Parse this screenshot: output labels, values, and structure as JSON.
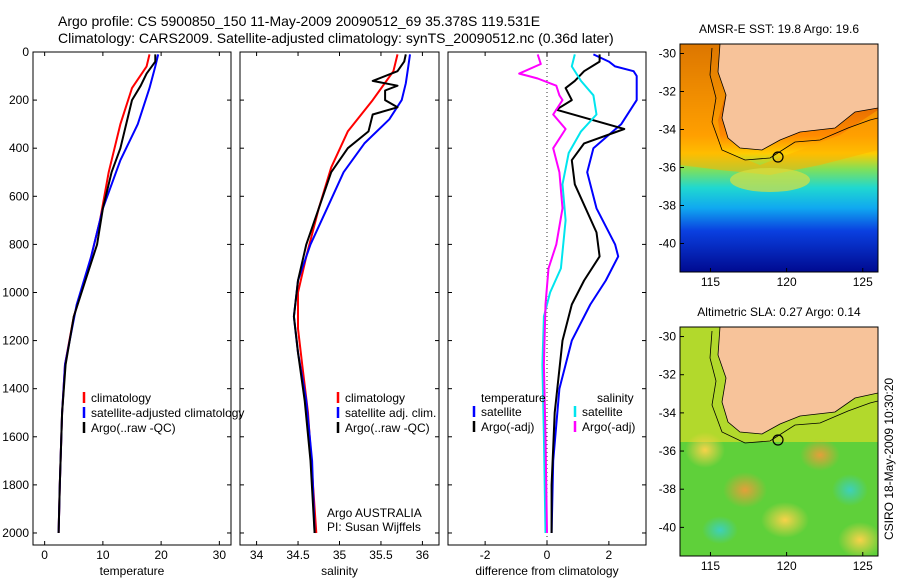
{
  "header": {
    "line1": "Argo profile: CS 5900850_150 11-May-2009 20090512_69 35.378S 119.531E",
    "line2": "Climatology: CARS2009. Satellite-adjusted climatology: synTS_20090512.nc (0.36d later)"
  },
  "credit": "CSIRO 18-May-2009 10:30:20",
  "colors": {
    "red": "#ff0000",
    "blue": "#0000ff",
    "black": "#000000",
    "cyan": "#00e5ee",
    "magenta": "#ff00ff",
    "land": "#f7c39a"
  },
  "chart_data": [
    {
      "type": "line",
      "xlabel": "temperature",
      "xlim": [
        -2,
        32
      ],
      "ylim": [
        2050,
        0
      ],
      "xticks": [
        0,
        10,
        20,
        30
      ],
      "yticks": [
        0,
        200,
        400,
        600,
        800,
        1000,
        1200,
        1400,
        1600,
        1800,
        2000
      ],
      "legend": [
        "climatology",
        "satellite-adjusted climatology",
        "Argo(..raw -QC)"
      ],
      "series": [
        {
          "name": "climatology",
          "color": "red",
          "points": [
            [
              18,
              10
            ],
            [
              17.5,
              60
            ],
            [
              15,
              150
            ],
            [
              13,
              300
            ],
            [
              11,
              500
            ],
            [
              9.5,
              700
            ],
            [
              7.5,
              900
            ],
            [
              5,
              1100
            ],
            [
              3.5,
              1300
            ],
            [
              3,
              1500
            ],
            [
              2.6,
              1800
            ],
            [
              2.4,
              2000
            ]
          ]
        },
        {
          "name": "satellite-adjusted climatology",
          "color": "blue",
          "points": [
            [
              19.5,
              10
            ],
            [
              19,
              60
            ],
            [
              18,
              150
            ],
            [
              16,
              300
            ],
            [
              13,
              450
            ],
            [
              10,
              650
            ],
            [
              8,
              850
            ],
            [
              5.5,
              1050
            ],
            [
              3.5,
              1300
            ],
            [
              3,
              1500
            ],
            [
              2.6,
              1800
            ],
            [
              2.4,
              2000
            ]
          ]
        },
        {
          "name": "Argo(..raw -QC)",
          "color": "black",
          "points": [
            [
              19,
              10
            ],
            [
              19,
              40
            ],
            [
              17.5,
              90
            ],
            [
              16.5,
              140
            ],
            [
              15,
              200
            ],
            [
              14,
              300
            ],
            [
              13,
              400
            ],
            [
              11.5,
              500
            ],
            [
              10,
              650
            ],
            [
              9,
              800
            ],
            [
              7,
              950
            ],
            [
              5,
              1100
            ],
            [
              3.6,
              1300
            ],
            [
              3,
              1500
            ],
            [
              2.6,
              1800
            ],
            [
              2.4,
              2000
            ]
          ]
        }
      ]
    },
    {
      "type": "line",
      "xlabel": "salinity",
      "xlim": [
        33.8,
        36.2
      ],
      "ylim": [
        2050,
        0
      ],
      "xticks": [
        34,
        34.5,
        35,
        35.5,
        36
      ],
      "yticks": [
        0,
        200,
        400,
        600,
        800,
        1000,
        1200,
        1400,
        1600,
        1800,
        2000
      ],
      "legend": [
        "climatology",
        "satellite adj. clim.",
        "Argo(..raw -QC)"
      ],
      "annotation": [
        "Argo AUSTRALIA",
        "PI: Susan Wijffels"
      ],
      "series": [
        {
          "name": "climatology",
          "color": "red",
          "points": [
            [
              35.7,
              10
            ],
            [
              35.65,
              80
            ],
            [
              35.4,
              200
            ],
            [
              35.1,
              330
            ],
            [
              34.9,
              480
            ],
            [
              34.75,
              650
            ],
            [
              34.6,
              850
            ],
            [
              34.5,
              1000
            ],
            [
              34.5,
              1150
            ],
            [
              34.55,
              1300
            ],
            [
              34.62,
              1500
            ],
            [
              34.68,
              1800
            ],
            [
              34.72,
              2000
            ]
          ]
        },
        {
          "name": "satellite adj. clim.",
          "color": "blue",
          "points": [
            [
              35.85,
              10
            ],
            [
              35.83,
              60
            ],
            [
              35.8,
              130
            ],
            [
              35.75,
              200
            ],
            [
              35.6,
              280
            ],
            [
              35.3,
              380
            ],
            [
              35.05,
              500
            ],
            [
              34.85,
              650
            ],
            [
              34.65,
              800
            ],
            [
              34.5,
              950
            ],
            [
              34.45,
              1100
            ],
            [
              34.5,
              1250
            ],
            [
              34.6,
              1450
            ],
            [
              34.67,
              1700
            ],
            [
              34.7,
              2000
            ]
          ]
        },
        {
          "name": "Argo(..raw -QC)",
          "color": "black",
          "points": [
            [
              35.8,
              10
            ],
            [
              35.78,
              40
            ],
            [
              35.7,
              80
            ],
            [
              35.4,
              120
            ],
            [
              35.7,
              140
            ],
            [
              35.55,
              160
            ],
            [
              35.55,
              200
            ],
            [
              35.7,
              230
            ],
            [
              35.4,
              260
            ],
            [
              35.35,
              330
            ],
            [
              35.1,
              400
            ],
            [
              34.9,
              500
            ],
            [
              34.75,
              650
            ],
            [
              34.6,
              800
            ],
            [
              34.5,
              950
            ],
            [
              34.45,
              1100
            ],
            [
              34.5,
              1250
            ],
            [
              34.58,
              1450
            ],
            [
              34.65,
              1700
            ],
            [
              34.7,
              2000
            ]
          ]
        }
      ]
    },
    {
      "type": "line",
      "xlabel": "difference from climatology",
      "xlim": [
        -3.2,
        3.2
      ],
      "ylim": [
        2050,
        0
      ],
      "xticks": [
        -2,
        0,
        2
      ],
      "yticks": [
        0,
        200,
        400,
        600,
        800,
        1000,
        1200,
        1400,
        1600,
        1800,
        2000
      ],
      "legend_temperature_header": "temperature",
      "legend_salinity_header": "salinity",
      "legend": [
        "satellite",
        "Argo(-adj)",
        "satellite",
        "Argo(-adj)"
      ],
      "series": [
        {
          "name": "temperature satellite",
          "color": "blue",
          "points": [
            [
              1.5,
              10
            ],
            [
              2,
              40
            ],
            [
              2.2,
              60
            ],
            [
              2.8,
              80
            ],
            [
              2.9,
              100
            ],
            [
              2.9,
              200
            ],
            [
              2.4,
              300
            ],
            [
              1.5,
              400
            ],
            [
              1.3,
              500
            ],
            [
              1.6,
              650
            ],
            [
              2.2,
              800
            ],
            [
              2.3,
              850
            ],
            [
              1.9,
              950
            ],
            [
              1.4,
              1050
            ],
            [
              0.8,
              1200
            ],
            [
              0.4,
              1400
            ],
            [
              0.2,
              1700
            ],
            [
              0.15,
              2000
            ]
          ]
        },
        {
          "name": "temperature Argo(-adj)",
          "color": "black",
          "points": [
            [
              1.7,
              10
            ],
            [
              1.7,
              40
            ],
            [
              1.2,
              80
            ],
            [
              0.9,
              120
            ],
            [
              0.6,
              150
            ],
            [
              0.8,
              200
            ],
            [
              0.3,
              240
            ],
            [
              2.5,
              320
            ],
            [
              1.2,
              380
            ],
            [
              0.8,
              450
            ],
            [
              0.9,
              550
            ],
            [
              1.6,
              750
            ],
            [
              1.7,
              850
            ],
            [
              1.2,
              950
            ],
            [
              0.8,
              1050
            ],
            [
              0.5,
              1200
            ],
            [
              0.25,
              1500
            ],
            [
              0.15,
              1800
            ],
            [
              0.15,
              2000
            ]
          ]
        },
        {
          "name": "salinity satellite",
          "color": "cyan",
          "points": [
            [
              0.9,
              10
            ],
            [
              0.8,
              60
            ],
            [
              1.1,
              120
            ],
            [
              1.5,
              180
            ],
            [
              1.6,
              260
            ],
            [
              1.1,
              330
            ],
            [
              0.7,
              420
            ],
            [
              0.5,
              550
            ],
            [
              0.6,
              700
            ],
            [
              0.45,
              900
            ],
            [
              0.1,
              1000
            ],
            [
              -0.1,
              1100
            ],
            [
              -0.15,
              1300
            ],
            [
              -0.1,
              1600
            ],
            [
              -0.05,
              2000
            ]
          ]
        },
        {
          "name": "salinity Argo(-adj)",
          "color": "magenta",
          "points": [
            [
              -0.3,
              10
            ],
            [
              -0.2,
              50
            ],
            [
              -0.9,
              90
            ],
            [
              -0.6,
              100
            ],
            [
              -0.3,
              110
            ],
            [
              0.3,
              140
            ],
            [
              0.4,
              180
            ],
            [
              0.5,
              200
            ],
            [
              0.2,
              260
            ],
            [
              0.6,
              320
            ],
            [
              0.2,
              400
            ],
            [
              0.4,
              500
            ],
            [
              0.5,
              650
            ],
            [
              0.3,
              800
            ],
            [
              0.05,
              900
            ],
            [
              -0.05,
              1050
            ],
            [
              -0.1,
              1300
            ],
            [
              -0.05,
              1600
            ],
            [
              0.0,
              2000
            ]
          ]
        }
      ]
    },
    {
      "type": "heatmap",
      "title": "AMSR-E SST: 19.8 Argo: 19.6",
      "xlim": [
        113,
        126
      ],
      "ylim": [
        -41.5,
        -29.5
      ],
      "xticks": [
        115,
        120,
        125
      ],
      "yticks": [
        -30,
        -32,
        -34,
        -36,
        -38,
        -40
      ],
      "float_position": [
        119.531,
        -35.378
      ]
    },
    {
      "type": "heatmap",
      "title": "Altimetric SLA: 0.27 Argo: 0.14",
      "xlim": [
        113,
        126
      ],
      "ylim": [
        -41.5,
        -29.5
      ],
      "xticks": [
        115,
        120,
        125
      ],
      "yticks": [
        -30,
        -32,
        -34,
        -36,
        -38,
        -40
      ],
      "float_position": [
        119.531,
        -35.378
      ]
    }
  ]
}
